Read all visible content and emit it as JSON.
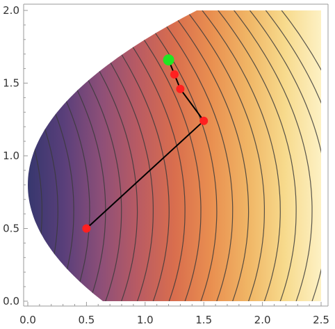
{
  "chart_data": {
    "type": "contour",
    "title": "",
    "xlabel": "",
    "ylabel": "",
    "xlim": [
      0.0,
      2.5
    ],
    "ylim": [
      0.0,
      2.0
    ],
    "x_ticks": [
      "0.0",
      "0.5",
      "1.0",
      "1.5",
      "2.0",
      "2.5"
    ],
    "y_ticks": [
      "0.0",
      "0.5",
      "1.0",
      "1.5",
      "2.0"
    ],
    "region": {
      "left_boundary": "x = (y - 0.8)^2",
      "x_max": 2.5,
      "y_max": 2.0
    },
    "colormap": [
      "#37376e",
      "#5a3f7a",
      "#8d4f78",
      "#b95b63",
      "#d96e4e",
      "#e98f50",
      "#f0b565",
      "#f7da8c",
      "#fdf1c4"
    ],
    "contour_levels": 24,
    "path_points": [
      {
        "x": 0.5,
        "y": 0.5
      },
      {
        "x": 1.5,
        "y": 1.24
      },
      {
        "x": 1.3,
        "y": 1.46
      },
      {
        "x": 1.25,
        "y": 1.56
      },
      {
        "x": 1.2,
        "y": 1.66
      }
    ],
    "path_point_colors": [
      "#ff2020",
      "#ff2020",
      "#ff2020",
      "#ff2020",
      "#22e622"
    ]
  }
}
